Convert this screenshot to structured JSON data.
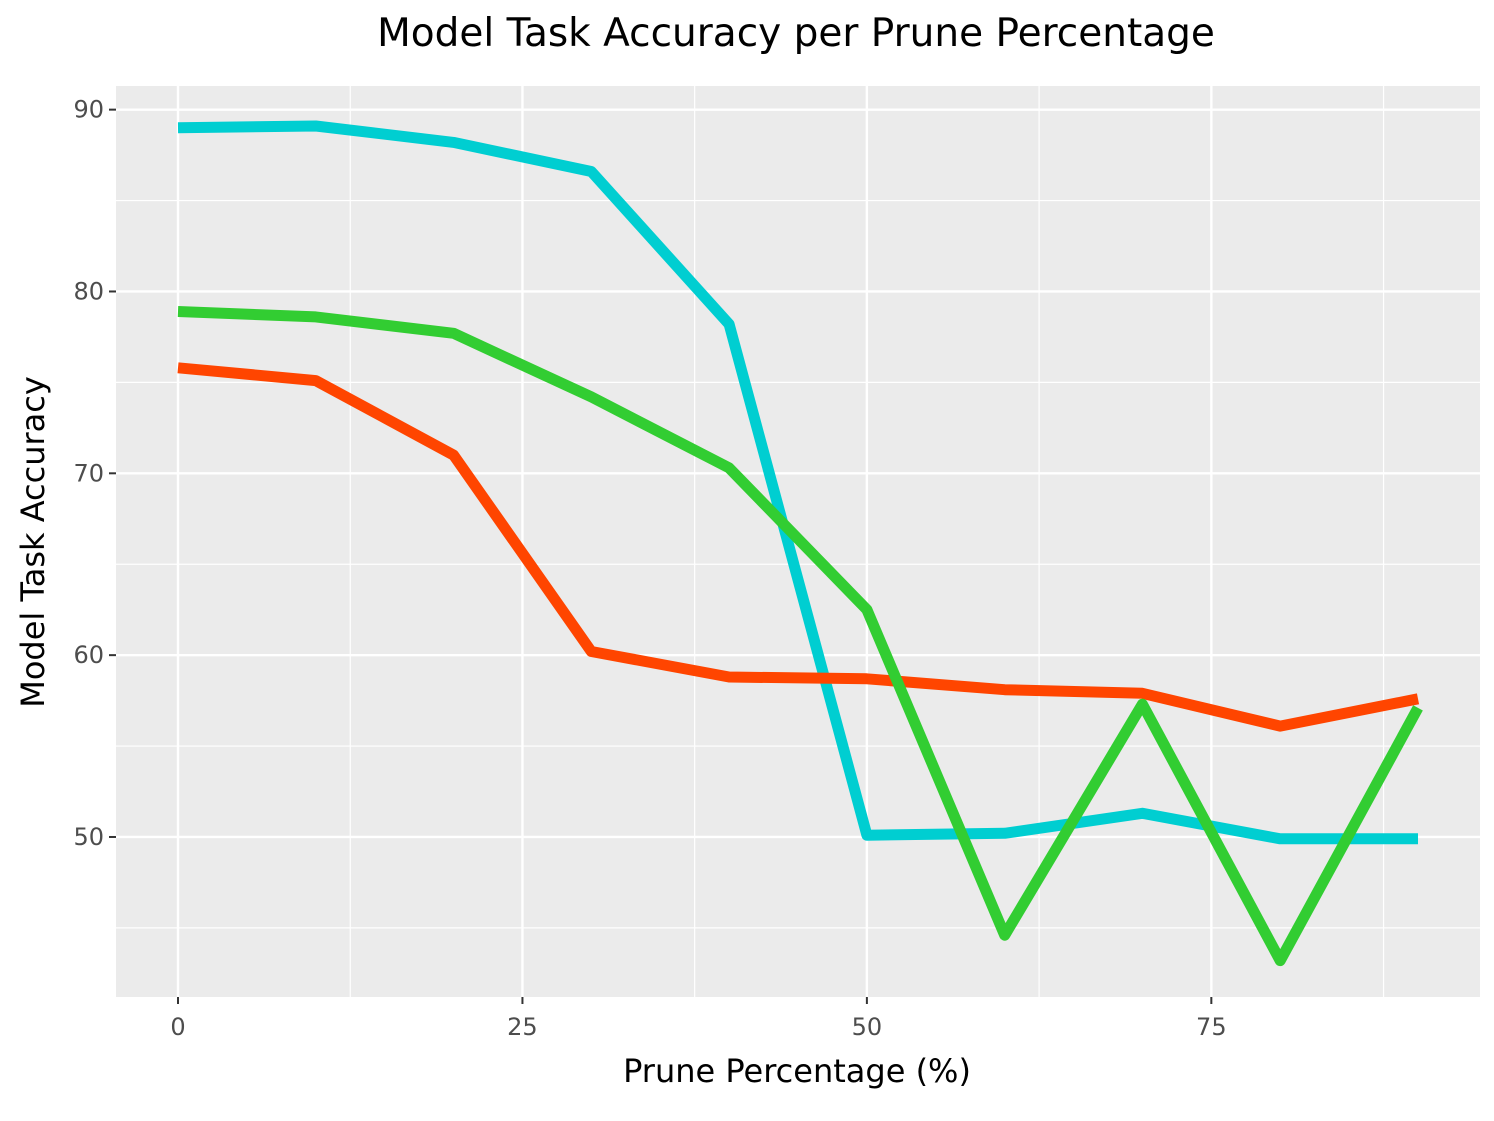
{
  "chart_data": {
    "type": "line",
    "title": "Model Task Accuracy per Prune Percentage",
    "xlabel": "Prune Percentage (%)",
    "ylabel": "Model Task Accuracy",
    "x": [
      0,
      10,
      20,
      30,
      40,
      50,
      60,
      70,
      80,
      90
    ],
    "xlim": [
      -4.5,
      94.5
    ],
    "ylim": [
      41.2,
      91.3
    ],
    "xticks": [
      0,
      25,
      50,
      75
    ],
    "xtick_labels": [
      "0",
      "25",
      "50",
      "75"
    ],
    "yticks": [
      50,
      60,
      70,
      80,
      90
    ],
    "ytick_labels": [
      "50",
      "60",
      "70",
      "80",
      "90"
    ],
    "grid": true,
    "legend": "none",
    "series": [
      {
        "color": "#00CED1",
        "values": [
          89.0,
          89.1,
          88.2,
          86.6,
          78.2,
          50.1,
          50.2,
          51.3,
          49.9,
          49.9
        ]
      },
      {
        "color": "#FF4500",
        "values": [
          75.8,
          75.1,
          71.0,
          60.2,
          58.8,
          58.7,
          58.1,
          57.9,
          56.1,
          57.6
        ]
      },
      {
        "color": "#32CD32",
        "values": [
          78.9,
          78.6,
          77.7,
          74.2,
          70.3,
          62.5,
          44.6,
          57.3,
          43.2,
          57.1
        ]
      }
    ],
    "colors": {
      "panel_background": "#EBEBEB",
      "grid": "#FFFFFF",
      "tick_text": "#4D4D4D"
    }
  }
}
